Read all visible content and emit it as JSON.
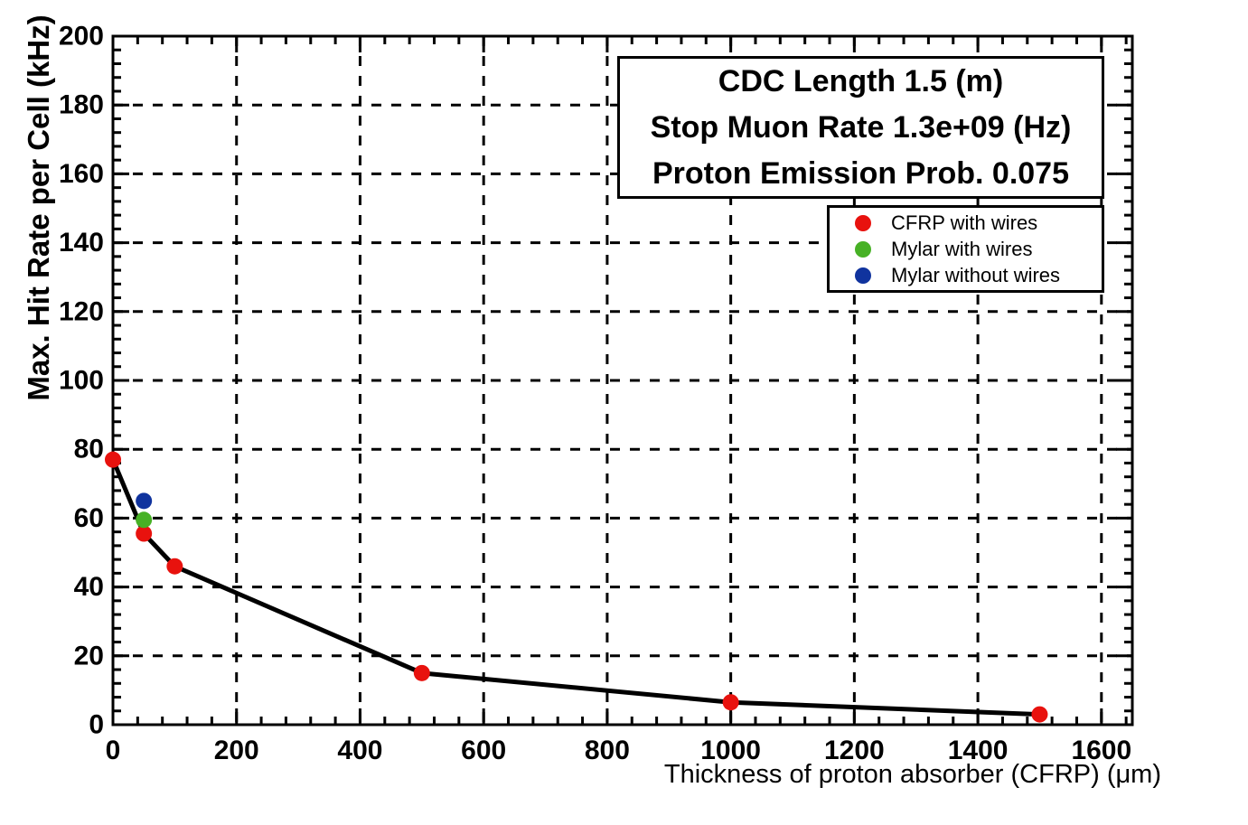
{
  "info_box": {
    "lines": [
      "CDC Length 1.5 (m)",
      "Stop Muon Rate 1.3e+09 (Hz)",
      "Proton Emission Prob. 0.075"
    ]
  },
  "legend": {
    "items": [
      {
        "label": "CFRP with wires",
        "color": "#e8120e"
      },
      {
        "label": "Mylar with wires",
        "color": "#47b125"
      },
      {
        "label": "Mylar without wires",
        "color": "#10339e"
      }
    ]
  },
  "chart_data": {
    "type": "scatter",
    "title": "",
    "xlabel": "Thickness of proton absorber (CFRP) (μm)",
    "ylabel": "Max. Hit Rate per Cell (kHz)",
    "xlim": [
      0,
      1650
    ],
    "ylim": [
      0,
      200
    ],
    "x_ticks": [
      0,
      200,
      400,
      600,
      800,
      1000,
      1200,
      1400,
      1600
    ],
    "y_ticks": [
      0,
      20,
      40,
      60,
      80,
      100,
      120,
      140,
      160,
      180,
      200
    ],
    "x_minor_step": 40,
    "y_minor_step": 4,
    "grid": true,
    "grid_style": "dashed",
    "legend_position": "upper-right",
    "colors": {
      "line": "#000000"
    },
    "series": [
      {
        "name": "CFRP with wires",
        "color": "#e8120e",
        "marker": "circle",
        "line": true,
        "points": [
          [
            0,
            77
          ],
          [
            50,
            55.5
          ],
          [
            100,
            46
          ],
          [
            500,
            15
          ],
          [
            1000,
            6.5
          ],
          [
            1500,
            3
          ]
        ]
      },
      {
        "name": "Mylar with wires",
        "color": "#47b125",
        "marker": "circle",
        "line": false,
        "points": [
          [
            50,
            59.5
          ]
        ]
      },
      {
        "name": "Mylar without wires",
        "color": "#10339e",
        "marker": "circle",
        "line": false,
        "points": [
          [
            50,
            65
          ]
        ]
      }
    ]
  }
}
